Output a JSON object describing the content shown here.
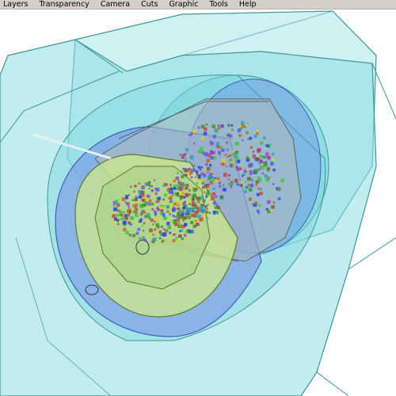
{
  "menubar": {
    "items": [
      {
        "label": "Layers"
      },
      {
        "label": "Transparency"
      },
      {
        "label": "Camera"
      },
      {
        "label": "Cuts"
      },
      {
        "label": "Graphic"
      },
      {
        "label": "Tools"
      },
      {
        "label": "Help"
      }
    ]
  },
  "viewport": {
    "background_color": "#ffffff",
    "content": "3d-detector-event-display",
    "colors": {
      "outer_layer": "#9ee6e6",
      "outer_edge": "#3e8e8e",
      "blue_layer": "#7f9ee6",
      "green_layer": "#c4e87a",
      "inner_layer": "#a7c8a7"
    }
  }
}
